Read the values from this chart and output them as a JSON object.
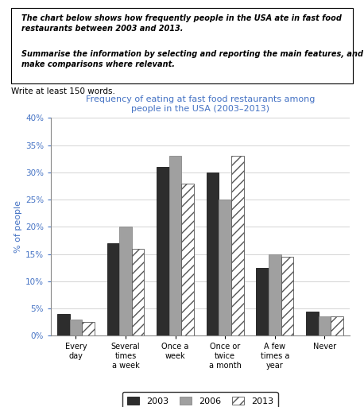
{
  "title": "Frequency of eating at fast food restaurants among\npeople in the USA (2003–2013)",
  "title_color": "#4472c4",
  "ylabel": "% of people",
  "categories": [
    "Every\nday",
    "Several\ntimes\na week",
    "Once a\nweek",
    "Once or\ntwice\na month",
    "A few\ntimes a\nyear",
    "Never"
  ],
  "years": [
    "2003",
    "2006",
    "2013"
  ],
  "values": {
    "2003": [
      4,
      17,
      31,
      30,
      12.5,
      4.5
    ],
    "2006": [
      3,
      20,
      33,
      25,
      15,
      3.5
    ],
    "2013": [
      2.5,
      16,
      28,
      33,
      14.5,
      3.5
    ]
  },
  "colors": {
    "2003": "#2d2d2d",
    "2006": "#a0a0a0",
    "2013": "white"
  },
  "hatch": {
    "2003": "",
    "2006": "",
    "2013": "///"
  },
  "edgecolors": {
    "2003": "#1a1a1a",
    "2006": "#888888",
    "2013": "#555555"
  },
  "ylim": [
    0,
    40
  ],
  "yticks": [
    0,
    5,
    10,
    15,
    20,
    25,
    30,
    35,
    40
  ],
  "ytick_labels": [
    "0%",
    "5%",
    "10%",
    "15%",
    "20%",
    "25%",
    "30%",
    "35%",
    "40%"
  ],
  "prompt_text1": "The chart below shows how frequently people in the USA ate in fast food\nrestaurants between 2003 and 2013.",
  "prompt_text2": "Summarise the information by selecting and reporting the main features, and\nmake comparisons where relevant.",
  "write_text": "Write at least 150 words.",
  "bar_width": 0.25
}
